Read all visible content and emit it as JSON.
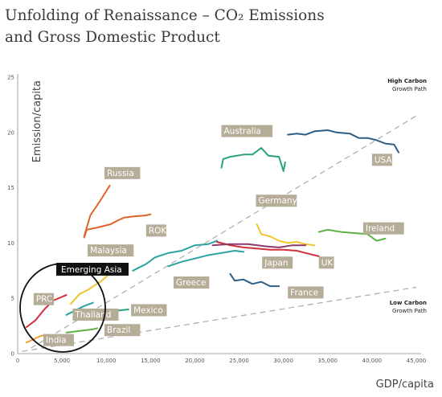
{
  "header": {
    "title_line1": "Unfolding of Renaissance – CO₂ Emissions",
    "title_line2": "and Gross Domestic Product"
  },
  "chart_data": {
    "type": "line",
    "title": "Unfolding of Renaissance – CO₂ Emissions and Gross Domestic Product",
    "xlabel": "GDP/capita",
    "ylabel": "Emission/capita",
    "xlim": [
      0,
      45000
    ],
    "ylim": [
      0,
      25
    ],
    "xticks": [
      0,
      5000,
      10000,
      15000,
      20000,
      25000,
      30000,
      35000,
      40000,
      45000
    ],
    "xtick_labels": [
      "0",
      "5,000",
      "10,000",
      "15,000",
      "20,000",
      "25,000",
      "30,000",
      "35,000",
      "40,000",
      "45,000"
    ],
    "yticks": [
      0,
      5,
      10,
      15,
      20,
      25
    ],
    "ytick_labels": [
      "0",
      "5",
      "10",
      "15",
      "20",
      "25"
    ],
    "grid": false,
    "legend": "none",
    "annotations": {
      "high_carbon_title": "High Carbon",
      "high_carbon_sub": "Growth Path",
      "low_carbon_title": "Low Carbon",
      "low_carbon_sub": "Growth Path",
      "emerging_asia": "Emerging Asia"
    },
    "reference_lines": [
      {
        "name": "High Carbon Growth Path",
        "x": [
          1500,
          45000
        ],
        "y": [
          0.5,
          21.5
        ]
      },
      {
        "name": "Low Carbon Growth Path",
        "x": [
          500,
          45000
        ],
        "y": [
          0.2,
          6.0
        ]
      }
    ],
    "series": [
      {
        "name": "Russia",
        "color": "#e0632a",
        "x": [
          7500,
          7800,
          9000,
          10500,
          11200,
          12000,
          13000,
          14500,
          15000
        ],
        "y": [
          10.5,
          11.2,
          11.4,
          11.7,
          12.0,
          12.3,
          12.4,
          12.5,
          12.6
        ]
      },
      {
        "name": "Russia-early",
        "color": "#e0632a",
        "x": [
          7500,
          8200,
          9300,
          10400
        ],
        "y": [
          10.6,
          12.5,
          13.8,
          15.2
        ]
      },
      {
        "name": "Australia",
        "color": "#2aa37a",
        "x": [
          23000,
          23200,
          24000,
          25500,
          26500,
          27500,
          28300,
          29500,
          30000,
          30200
        ],
        "y": [
          16.8,
          17.6,
          17.8,
          18.0,
          18.0,
          18.6,
          17.9,
          17.8,
          16.5,
          17.3
        ]
      },
      {
        "name": "USA",
        "color": "#2e5f85",
        "x": [
          30500,
          31500,
          32500,
          33500,
          35000,
          36000,
          37500,
          38500,
          39500,
          40500,
          41500,
          42500,
          43000
        ],
        "y": [
          19.8,
          19.9,
          19.8,
          20.1,
          20.2,
          20.0,
          19.9,
          19.5,
          19.5,
          19.3,
          19.0,
          18.9,
          18.2
        ]
      },
      {
        "name": "Germany",
        "color": "#f0c530",
        "x": [
          27000,
          27500,
          28500,
          29500,
          30500,
          31500,
          32500,
          33500
        ],
        "y": [
          11.7,
          10.8,
          10.6,
          10.2,
          10.0,
          10.1,
          9.9,
          9.8
        ]
      },
      {
        "name": "Ireland",
        "color": "#5fb346",
        "x": [
          34000,
          35000,
          36500,
          38000,
          39500,
          40500,
          41500
        ],
        "y": [
          11.0,
          11.2,
          11.0,
          10.9,
          10.8,
          10.2,
          10.4
        ]
      },
      {
        "name": "ROK",
        "color": "#2aa3a0",
        "x": [
          13000,
          14500,
          15500,
          17000,
          18500,
          20000,
          21500,
          22500
        ],
        "y": [
          7.5,
          8.1,
          8.7,
          9.1,
          9.3,
          9.8,
          9.9,
          10.2
        ]
      },
      {
        "name": "UK",
        "color": "#d22f3a",
        "x": [
          22500,
          24000,
          25500,
          27000,
          28500,
          30000,
          31500,
          33000,
          34000
        ],
        "y": [
          10.1,
          9.8,
          9.6,
          9.5,
          9.4,
          9.4,
          9.3,
          9.0,
          8.8
        ]
      },
      {
        "name": "Japan",
        "color": "#8c3a6a",
        "x": [
          22000,
          24000,
          26000,
          28000,
          29500,
          31000,
          32500
        ],
        "y": [
          9.8,
          9.9,
          9.9,
          9.7,
          9.6,
          9.8,
          9.8
        ]
      },
      {
        "name": "France",
        "color": "#2e5f85",
        "x": [
          24000,
          24500,
          25500,
          26500,
          27500,
          28500,
          29500
        ],
        "y": [
          7.2,
          6.6,
          6.7,
          6.3,
          6.5,
          6.1,
          6.1
        ]
      },
      {
        "name": "Greece",
        "color": "#2aa3a0",
        "x": [
          17000,
          18500,
          20000,
          21500,
          23000,
          24500,
          25500
        ],
        "y": [
          7.9,
          8.3,
          8.6,
          8.9,
          9.1,
          9.3,
          9.2
        ]
      },
      {
        "name": "Malaysia",
        "color": "#f0c530",
        "x": [
          6000,
          7000,
          8000,
          9500,
          10500,
          11500
        ],
        "y": [
          4.5,
          5.4,
          5.8,
          6.6,
          7.3,
          7.6
        ]
      },
      {
        "name": "Mexico",
        "color": "#2aa37a",
        "x": [
          8500,
          9500,
          10500,
          11500,
          12500
        ],
        "y": [
          3.8,
          3.9,
          4.0,
          3.9,
          4.0
        ]
      },
      {
        "name": "Thailand",
        "color": "#2aa3a0",
        "x": [
          5500,
          6500,
          7500,
          8500
        ],
        "y": [
          3.5,
          3.9,
          4.3,
          4.6
        ]
      },
      {
        "name": "Brazil",
        "color": "#5fb346",
        "x": [
          5500,
          6500,
          7500,
          8500,
          9000
        ],
        "y": [
          1.9,
          2.0,
          2.1,
          2.2,
          2.3
        ]
      },
      {
        "name": "PRC",
        "color": "#d22f3a",
        "x": [
          1000,
          2000,
          3000,
          4000,
          5500
        ],
        "y": [
          2.4,
          3.0,
          4.0,
          4.8,
          5.3
        ]
      },
      {
        "name": "India",
        "color": "#f0a030",
        "x": [
          1000,
          1800,
          2600,
          3200
        ],
        "y": [
          1.0,
          1.3,
          1.6,
          1.7
        ]
      }
    ],
    "labels": [
      {
        "text": "Russia",
        "x": 9800,
        "y": 16.0
      },
      {
        "text": "Australia",
        "x": 23000,
        "y": 19.8
      },
      {
        "text": "USA",
        "x": 40000,
        "y": 17.2
      },
      {
        "text": "Germany",
        "x": 26900,
        "y": 13.5
      },
      {
        "text": "Ireland",
        "x": 39000,
        "y": 11.0
      },
      {
        "text": "ROK",
        "x": 14500,
        "y": 10.8
      },
      {
        "text": "Malaysia",
        "x": 7900,
        "y": 9.0
      },
      {
        "text": "Japan",
        "x": 27600,
        "y": 7.9
      },
      {
        "text": "UK",
        "x": 34000,
        "y": 7.9
      },
      {
        "text": "Greece",
        "x": 17600,
        "y": 6.1
      },
      {
        "text": "France",
        "x": 30500,
        "y": 5.2
      },
      {
        "text": "Mexico",
        "x": 12800,
        "y": 3.6
      },
      {
        "text": "Thailand",
        "x": 6200,
        "y": 3.2
      },
      {
        "text": "Brazil",
        "x": 9800,
        "y": 1.8
      },
      {
        "text": "PRC",
        "x": 1800,
        "y": 4.6
      },
      {
        "text": "India",
        "x": 2900,
        "y": 0.9
      }
    ]
  }
}
